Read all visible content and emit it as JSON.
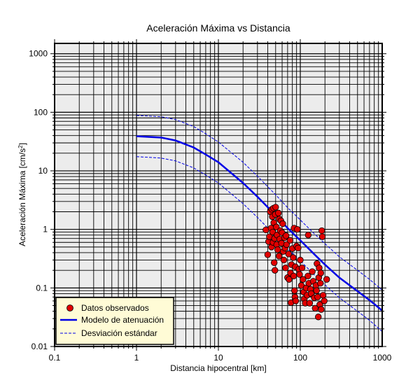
{
  "chart_data": {
    "type": "scatter",
    "title": "Aceleración Máxima vs Distancia",
    "xlabel": "Distancia hipocentral [km]",
    "ylabel_main": "Aceleración Máxima [cm/s",
    "ylabel_sup": "2",
    "ylabel_tail": "]",
    "x_scale": "log",
    "y_scale": "log",
    "xlim": [
      0.1,
      1000
    ],
    "ylim": [
      0.01,
      1500
    ],
    "x_ticks": [
      {
        "value": 0.1,
        "label": "0.1"
      },
      {
        "value": 1,
        "label": "1"
      },
      {
        "value": 10,
        "label": "10"
      },
      {
        "value": 100,
        "label": "100"
      },
      {
        "value": 1000,
        "label": "1000"
      }
    ],
    "y_ticks": [
      {
        "value": 0.01,
        "label": "0.01"
      },
      {
        "value": 0.1,
        "label": "0.1"
      },
      {
        "value": 1,
        "label": "1"
      },
      {
        "value": 10,
        "label": "10"
      },
      {
        "value": 100,
        "label": "100"
      },
      {
        "value": 1000,
        "label": "1000"
      }
    ],
    "grid": true,
    "legend_position": "bottom-left",
    "colors": {
      "plot_bg": "#ececec",
      "grid": "#000000",
      "points": "#e00000",
      "model": "#0000e6",
      "std": "#0000e6",
      "legend_bg": "#fffbd6"
    },
    "series": [
      {
        "name": "Datos observados",
        "kind": "points",
        "points": [
          [
            38,
            0.98
          ],
          [
            40,
            0.37
          ],
          [
            41,
            0.62
          ],
          [
            42,
            0.75
          ],
          [
            43,
            2.0
          ],
          [
            44,
            1.05
          ],
          [
            44.5,
            0.5
          ],
          [
            45,
            2.2
          ],
          [
            45.5,
            1.65
          ],
          [
            46,
            0.9
          ],
          [
            46.5,
            0.6
          ],
          [
            47,
            2.3
          ],
          [
            47.5,
            1.3
          ],
          [
            48,
            0.27
          ],
          [
            48.5,
            0.7
          ],
          [
            49,
            0.2
          ],
          [
            49.5,
            1.8
          ],
          [
            50,
            2.4
          ],
          [
            51,
            1.1
          ],
          [
            51.5,
            0.55
          ],
          [
            52,
            0.8
          ],
          [
            53,
            0.45
          ],
          [
            54,
            1.9
          ],
          [
            55,
            0.35
          ],
          [
            55.5,
            1.5
          ],
          [
            56,
            0.68
          ],
          [
            57,
            0.95
          ],
          [
            58,
            1.4
          ],
          [
            59,
            0.58
          ],
          [
            60,
            0.88
          ],
          [
            61,
            1.25
          ],
          [
            62,
            0.42
          ],
          [
            63,
            0.3
          ],
          [
            64,
            0.72
          ],
          [
            65,
            0.48
          ],
          [
            66,
            0.22
          ],
          [
            67,
            0.78
          ],
          [
            68,
            0.55
          ],
          [
            70,
            0.15
          ],
          [
            72,
            0.38
          ],
          [
            73,
            0.14
          ],
          [
            75,
            0.65
          ],
          [
            76,
            0.18
          ],
          [
            77,
            0.056
          ],
          [
            78,
            0.25
          ],
          [
            80,
            0.47
          ],
          [
            82,
            0.33
          ],
          [
            83,
            0.16
          ],
          [
            84,
            1.05
          ],
          [
            85,
            0.09
          ],
          [
            86,
            0.07
          ],
          [
            87,
            0.23
          ],
          [
            88,
            0.06
          ],
          [
            90,
            0.52
          ],
          [
            92,
            1.0
          ],
          [
            94,
            0.48
          ],
          [
            96,
            0.21
          ],
          [
            98,
            0.17
          ],
          [
            100,
            0.3
          ],
          [
            103,
            0.11
          ],
          [
            105,
            0.22
          ],
          [
            108,
            0.14
          ],
          [
            110,
            0.085
          ],
          [
            112,
            0.065
          ],
          [
            115,
            0.055
          ],
          [
            118,
            0.1
          ],
          [
            121,
            0.075
          ],
          [
            124,
            0.16
          ],
          [
            127,
            0.12
          ],
          [
            130,
            0.055
          ],
          [
            133,
            0.095
          ],
          [
            136,
            0.08
          ],
          [
            140,
            0.19
          ],
          [
            144,
            0.13
          ],
          [
            148,
            0.068
          ],
          [
            152,
            0.045
          ],
          [
            155,
            0.11
          ],
          [
            158,
            0.09
          ],
          [
            160,
            0.26
          ],
          [
            163,
            0.07
          ],
          [
            166,
            0.032
          ],
          [
            168,
            0.15
          ],
          [
            170,
            0.22
          ],
          [
            173,
            0.052
          ],
          [
            176,
            0.12
          ],
          [
            178,
            0.18
          ],
          [
            180,
            0.043
          ],
          [
            183,
            0.95
          ],
          [
            186,
            0.75
          ],
          [
            190,
            0.075
          ],
          [
            196,
            0.06
          ],
          [
            210,
            0.14
          ],
          [
            125,
            0.8
          ]
        ]
      },
      {
        "name": "Modelo de atenuación",
        "kind": "line",
        "points": [
          [
            1,
            39
          ],
          [
            2,
            37
          ],
          [
            3,
            33
          ],
          [
            5,
            25
          ],
          [
            7,
            19
          ],
          [
            10,
            14
          ],
          [
            20,
            6.2
          ],
          [
            30,
            3.6
          ],
          [
            50,
            1.75
          ],
          [
            70,
            1.05
          ],
          [
            100,
            0.65
          ],
          [
            150,
            0.37
          ],
          [
            200,
            0.25
          ],
          [
            300,
            0.15
          ],
          [
            500,
            0.088
          ],
          [
            700,
            0.062
          ],
          [
            1000,
            0.041
          ]
        ]
      },
      {
        "name": "Desviación estándar",
        "kind": "dashed",
        "lines": [
          [
            [
              1,
              88
            ],
            [
              2,
              84
            ],
            [
              3,
              75
            ],
            [
              5,
              57
            ],
            [
              7,
              43
            ],
            [
              10,
              31
            ],
            [
              20,
              14
            ],
            [
              30,
              8.1
            ],
            [
              50,
              3.9
            ],
            [
              70,
              2.35
            ],
            [
              100,
              1.45
            ],
            [
              150,
              0.83
            ],
            [
              200,
              0.57
            ],
            [
              300,
              0.34
            ],
            [
              500,
              0.2
            ],
            [
              700,
              0.14
            ],
            [
              1000,
              0.092
            ]
          ],
          [
            [
              1,
              17.5
            ],
            [
              2,
              16.5
            ],
            [
              3,
              14.8
            ],
            [
              5,
              11.2
            ],
            [
              7,
              8.5
            ],
            [
              10,
              6.2
            ],
            [
              20,
              2.75
            ],
            [
              30,
              1.6
            ],
            [
              50,
              0.77
            ],
            [
              70,
              0.47
            ],
            [
              100,
              0.29
            ],
            [
              150,
              0.165
            ],
            [
              200,
              0.113
            ],
            [
              300,
              0.068
            ],
            [
              500,
              0.04
            ],
            [
              700,
              0.028
            ],
            [
              1000,
              0.018
            ]
          ]
        ]
      }
    ]
  }
}
